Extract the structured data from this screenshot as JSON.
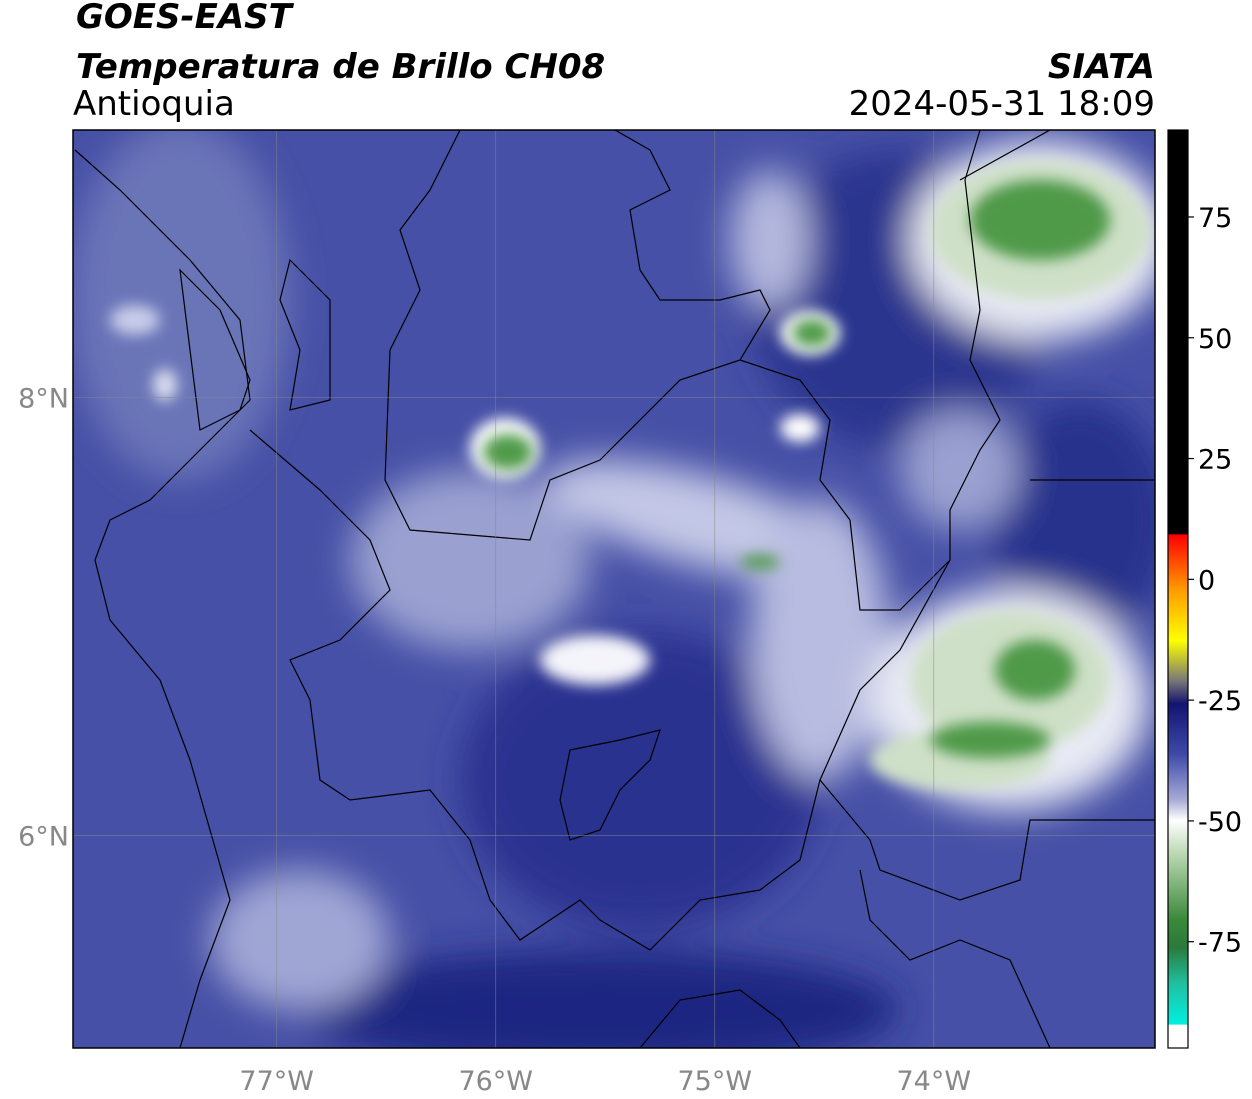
{
  "header": {
    "title": "GOES-EAST",
    "subtitle": "Temperatura de Brillo CH08",
    "region": "Antioquia",
    "source": "SIATA",
    "datetime": "2024-05-31 18:09"
  },
  "chart_data": {
    "type": "map",
    "xlim": [
      -77.93,
      -72.99
    ],
    "ylim": [
      5.03,
      9.22
    ],
    "xticks": [
      {
        "value": -77,
        "label": "77°W"
      },
      {
        "value": -76,
        "label": "76°W"
      },
      {
        "value": -75,
        "label": "75°W"
      },
      {
        "value": -74,
        "label": "74°W"
      }
    ],
    "yticks": [
      {
        "value": 6,
        "label": "6°N"
      },
      {
        "value": 8,
        "label": "8°N"
      }
    ],
    "grid": true,
    "colorbar": {
      "lim": [
        -97,
        93
      ],
      "ticks": [
        -75,
        -50,
        -25,
        0,
        25,
        50,
        75
      ]
    }
  }
}
